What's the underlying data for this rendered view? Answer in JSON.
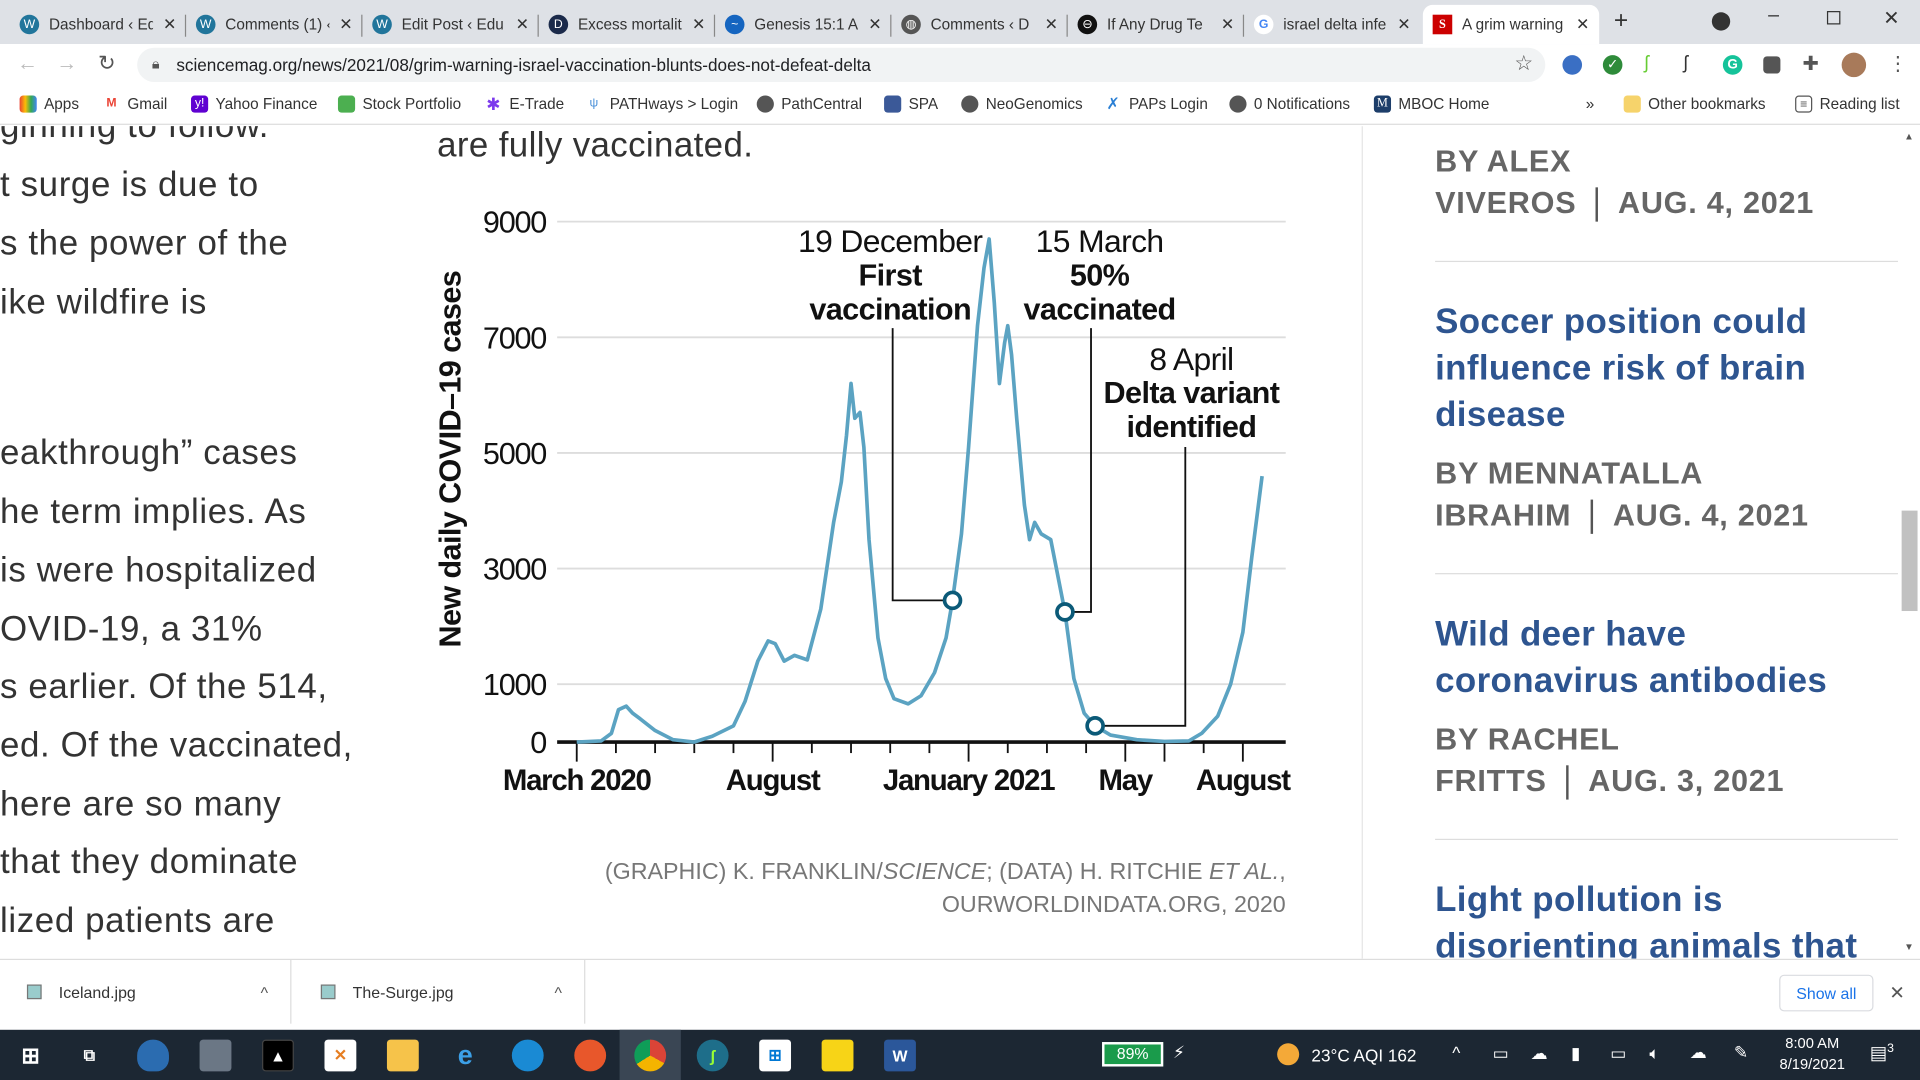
{
  "browser": {
    "tabs": [
      {
        "title": "Dashboard ‹ Ed",
        "icon": "wordpress-icon"
      },
      {
        "title": "Comments (1) ‹",
        "icon": "wordpress-icon"
      },
      {
        "title": "Edit Post ‹ Edu",
        "icon": "wordpress-icon"
      },
      {
        "title": "Excess mortalit",
        "icon": "data-icon"
      },
      {
        "title": "Genesis 15:1 A",
        "icon": "bible-icon"
      },
      {
        "title": "Comments ‹ D",
        "icon": "globe-icon"
      },
      {
        "title": "If Any Drug Te",
        "icon": "site-icon"
      },
      {
        "title": "israel delta infe",
        "icon": "google-icon"
      },
      {
        "title": "A grim warning",
        "icon": "science-icon",
        "active": true
      }
    ],
    "url": "sciencemag.org/news/2021/08/grim-warning-israel-vaccination-blunts-does-not-defeat-delta",
    "bookmarks": [
      "Apps",
      "Gmail",
      "Yahoo Finance",
      "Stock Portfolio",
      "E-Trade",
      "PATHways > Login",
      "PathCentral",
      "SPA",
      "NeoGenomics",
      "PAPs Login",
      "0 Notifications",
      "MBOC Home"
    ],
    "other_bookmarks": "Other bookmarks",
    "reading_list": "Reading list",
    "overflow": "»"
  },
  "article": {
    "lines_top": [
      "ginning to follow.",
      "t surge is due to",
      "s the power of the",
      "ike wildfire is"
    ],
    "lines_bottom": [
      "eakthrough” cases",
      "he term implies. As",
      "is were hospitalized",
      "OVID-19, a 31%",
      "s earlier. Of the 514,",
      "ed. Of the vaccinated,",
      "here are so many",
      " that they dominate",
      "lized patients are"
    ],
    "chart_intro": "are fully vaccinated.",
    "credit_line1_a": "(GRAPHIC) K. FRANKLIN/",
    "credit_line1_b": "SCIENCE",
    "credit_line1_c": "; (DATA) H. RITCHIE ",
    "credit_line1_d": "ET AL.",
    "credit_line1_e": ",",
    "credit_line2": "OURWORLDINDATA.ORG, 2020"
  },
  "chart_data": {
    "type": "line",
    "title": "",
    "ylabel": "New daily COVID–19 cases",
    "xlabel": "",
    "ylim": [
      0,
      9000
    ],
    "yticks": [
      "9000",
      "7000",
      "5000",
      "3000",
      "1000",
      "0"
    ],
    "xticks": [
      {
        "date": "2020-03-01",
        "label": "March 2020"
      },
      {
        "date": "2020-08-01",
        "label": "August"
      },
      {
        "date": "2021-01-01",
        "label": "January 2021"
      },
      {
        "date": "2021-05-01",
        "label": "May"
      },
      {
        "date": "2021-08-01",
        "label": "August"
      }
    ],
    "grid": true,
    "color": "#5ba3c2",
    "marker_color": "#0b5a78",
    "series": [
      {
        "points": [
          [
            "2020-03-01",
            0
          ],
          [
            "2020-03-20",
            20
          ],
          [
            "2020-03-28",
            150
          ],
          [
            "2020-04-03",
            560
          ],
          [
            "2020-04-09",
            620
          ],
          [
            "2020-04-14",
            500
          ],
          [
            "2020-04-20",
            400
          ],
          [
            "2020-05-01",
            200
          ],
          [
            "2020-05-15",
            40
          ],
          [
            "2020-06-01",
            0
          ],
          [
            "2020-06-15",
            100
          ],
          [
            "2020-07-01",
            280
          ],
          [
            "2020-07-10",
            700
          ],
          [
            "2020-07-20",
            1400
          ],
          [
            "2020-07-28",
            1750
          ],
          [
            "2020-08-03",
            1700
          ],
          [
            "2020-08-10",
            1400
          ],
          [
            "2020-08-18",
            1500
          ],
          [
            "2020-08-28",
            1420
          ],
          [
            "2020-09-08",
            2300
          ],
          [
            "2020-09-18",
            3800
          ],
          [
            "2020-09-24",
            4500
          ],
          [
            "2020-09-28",
            5300
          ],
          [
            "2020-10-01",
            6200
          ],
          [
            "2020-10-04",
            5600
          ],
          [
            "2020-10-08",
            5700
          ],
          [
            "2020-10-11",
            5100
          ],
          [
            "2020-10-15",
            3500
          ],
          [
            "2020-10-22",
            1800
          ],
          [
            "2020-10-28",
            1100
          ],
          [
            "2020-11-04",
            750
          ],
          [
            "2020-11-15",
            660
          ],
          [
            "2020-11-25",
            800
          ],
          [
            "2020-12-05",
            1200
          ],
          [
            "2020-12-14",
            1800
          ],
          [
            "2020-12-19",
            2450
          ],
          [
            "2020-12-26",
            3600
          ],
          [
            "2021-01-01",
            5100
          ],
          [
            "2021-01-08",
            7200
          ],
          [
            "2021-01-13",
            8200
          ],
          [
            "2021-01-17",
            8700
          ],
          [
            "2021-01-21",
            7600
          ],
          [
            "2021-01-25",
            6200
          ],
          [
            "2021-01-29",
            6900
          ],
          [
            "2021-02-01",
            7200
          ],
          [
            "2021-02-04",
            6700
          ],
          [
            "2021-02-08",
            5600
          ],
          [
            "2021-02-14",
            4100
          ],
          [
            "2021-02-18",
            3500
          ],
          [
            "2021-02-22",
            3800
          ],
          [
            "2021-02-27",
            3600
          ],
          [
            "2021-03-04",
            3500
          ],
          [
            "2021-03-15",
            2250
          ],
          [
            "2021-03-22",
            1100
          ],
          [
            "2021-03-30",
            500
          ],
          [
            "2021-04-08",
            280
          ],
          [
            "2021-04-20",
            120
          ],
          [
            "2021-05-10",
            40
          ],
          [
            "2021-06-01",
            10
          ],
          [
            "2021-06-20",
            20
          ],
          [
            "2021-06-30",
            150
          ],
          [
            "2021-07-12",
            450
          ],
          [
            "2021-07-22",
            1000
          ],
          [
            "2021-08-01",
            1900
          ],
          [
            "2021-08-08",
            3200
          ],
          [
            "2021-08-16",
            4600
          ]
        ]
      }
    ],
    "annotations": [
      {
        "date": "2020-12-19",
        "value": 2450,
        "date_label": "19 December",
        "event": "First\nvaccination"
      },
      {
        "date": "2021-03-15",
        "value": 2250,
        "date_label": "15 March",
        "event": "50%\nvaccinated"
      },
      {
        "date": "2021-04-08",
        "value": 280,
        "date_label": "8 April",
        "event": "Delta variant\nidentified"
      }
    ]
  },
  "sidebar": {
    "items": [
      {
        "title": "",
        "by_line1": "BY ALEX",
        "by_line2": "VIVEROS",
        "date": "AUG. 4, 2021"
      },
      {
        "title": "Soccer position could influence risk of brain disease",
        "by_line1": "BY MENNATALLA",
        "by_line2": "IBRAHIM",
        "date": "AUG. 4, 2021"
      },
      {
        "title": "Wild deer have coronavirus antibodies",
        "by_line1": "BY RACHEL",
        "by_line2": "FRITTS",
        "date": "AUG. 3, 2021"
      },
      {
        "title": "Light pollution is disorienting animals that navigate by the night sky"
      }
    ]
  },
  "downloads": {
    "files": [
      "Iceland.jpg",
      "The-Surge.jpg"
    ],
    "show_all": "Show all"
  },
  "taskbar": {
    "battery": "89%",
    "weather": "23°C  AQI 162",
    "time": "8:00 AM",
    "date": "8/19/2021",
    "notifications": "3"
  }
}
